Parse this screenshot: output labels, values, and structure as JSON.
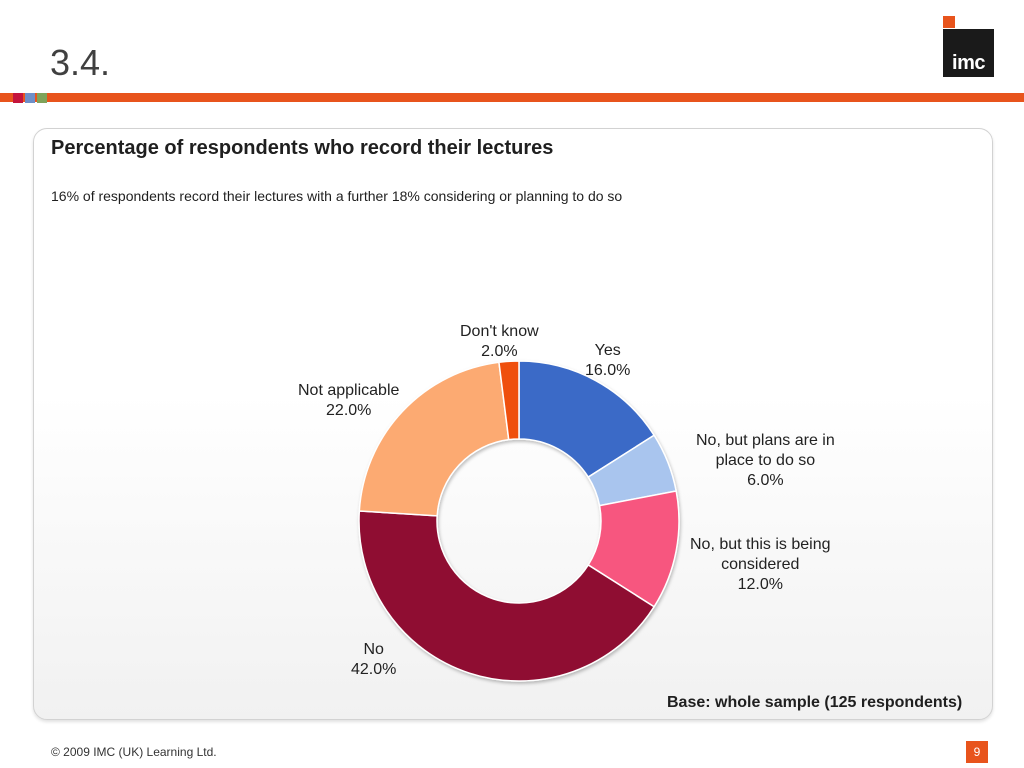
{
  "slide": {
    "heading": "3.4.",
    "logo_text": "imc",
    "copyright": "© 2009 IMC (UK) Learning Ltd.",
    "page_number": "9",
    "accent_color": "#e8541c"
  },
  "chart_data": {
    "type": "pie",
    "title": "Percentage of respondents who record their lectures",
    "subtitle": "16% of respondents record their lectures with a further 18% considering or planning to do so",
    "base_note": "Base: whole sample (125 respondents)",
    "hole": "donut",
    "start": "12 o'clock",
    "direction": "clockwise",
    "slices": [
      {
        "label": "Yes",
        "value": 16.0,
        "display": "16.0%",
        "color": "#3a6bc7"
      },
      {
        "label": "No, but plans are in place to do so",
        "value": 6.0,
        "display": "6.0%",
        "color": "#a9c5ee"
      },
      {
        "label": "No, but this is being considered",
        "value": 12.0,
        "display": "12.0%",
        "color": "#f7577f"
      },
      {
        "label": "No",
        "value": 42.0,
        "display": "42.0%",
        "color": "#8f1032"
      },
      {
        "label": "Not applicable",
        "value": 22.0,
        "display": "22.0%",
        "color": "#fcaa72"
      },
      {
        "label": "Don't know",
        "value": 2.0,
        "display": "2.0%",
        "color": "#ef4f0c"
      }
    ],
    "label_lines": {
      "yes": [
        "Yes",
        "16.0%"
      ],
      "plans": [
        "No, but plans are in",
        "place to do so",
        "6.0%"
      ],
      "considered": [
        "No, but this is being",
        "considered",
        "12.0%"
      ],
      "no": [
        "No",
        "42.0%"
      ],
      "not_applicable": [
        "Not applicable",
        "22.0%"
      ],
      "dont_know": [
        "Don't know",
        "2.0%"
      ]
    }
  }
}
